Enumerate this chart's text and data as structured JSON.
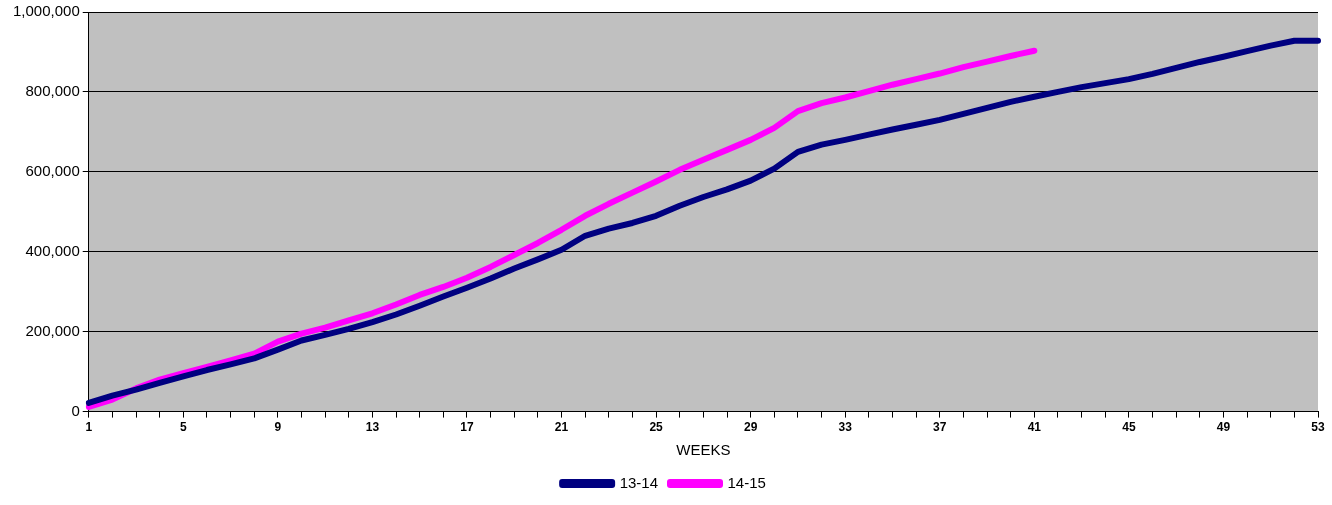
{
  "chart_data": {
    "type": "line",
    "xlabel": "WEEKS",
    "categories": [
      "1",
      null,
      null,
      null,
      "5",
      null,
      null,
      null,
      "9",
      null,
      null,
      null,
      "13",
      null,
      null,
      null,
      "17",
      null,
      null,
      null,
      "21",
      null,
      null,
      null,
      "25",
      null,
      null,
      null,
      "29",
      null,
      null,
      null,
      "33",
      null,
      null,
      null,
      "37",
      null,
      null,
      null,
      "41",
      null,
      null,
      null,
      "45",
      null,
      null,
      null,
      "49",
      null,
      null,
      null,
      "53"
    ],
    "series": [
      {
        "name": "13-14",
        "color": "#000080",
        "values": [
          22000,
          40000,
          55000,
          72000,
          88000,
          104000,
          118000,
          133000,
          155000,
          178000,
          192000,
          207000,
          224000,
          243000,
          265000,
          288000,
          310000,
          333000,
          358000,
          381000,
          405000,
          440000,
          458000,
          472000,
          490000,
          515000,
          537000,
          556000,
          578000,
          608000,
          650000,
          668000,
          680000,
          693000,
          706000,
          718000,
          730000,
          745000,
          760000,
          775000,
          788000,
          800000,
          812000,
          822000,
          832000,
          845000,
          860000,
          875000,
          888000,
          902000,
          916000,
          928000,
          928000
        ]
      },
      {
        "name": "14-15",
        "color": "#ff00ff",
        "values": [
          12000,
          30000,
          58000,
          80000,
          96000,
          112000,
          128000,
          145000,
          175000,
          195000,
          210000,
          228000,
          246000,
          268000,
          292000,
          312000,
          335000,
          362000,
          392000,
          422000,
          455000,
          490000,
          520000,
          548000,
          576000,
          605000,
          630000,
          655000,
          680000,
          710000,
          752000,
          772000,
          786000,
          802000,
          818000,
          832000,
          846000,
          862000,
          876000,
          890000,
          903000,
          null,
          null,
          null,
          null,
          null,
          null,
          null,
          null,
          null,
          null,
          null,
          null
        ]
      }
    ],
    "ylim": [
      0,
      1000000
    ],
    "yticks": [
      0,
      {
        "value": 200000,
        "label": "200,000"
      },
      {
        "value": 400000,
        "label": "400,000"
      },
      {
        "value": 600000,
        "label": "600,000"
      },
      {
        "value": 800000,
        "label": "800,000"
      },
      {
        "value": 1000000,
        "label": "1,000,000"
      }
    ],
    "grid": "y",
    "legend": "bottom",
    "marker": "none",
    "line_style": "solid"
  }
}
